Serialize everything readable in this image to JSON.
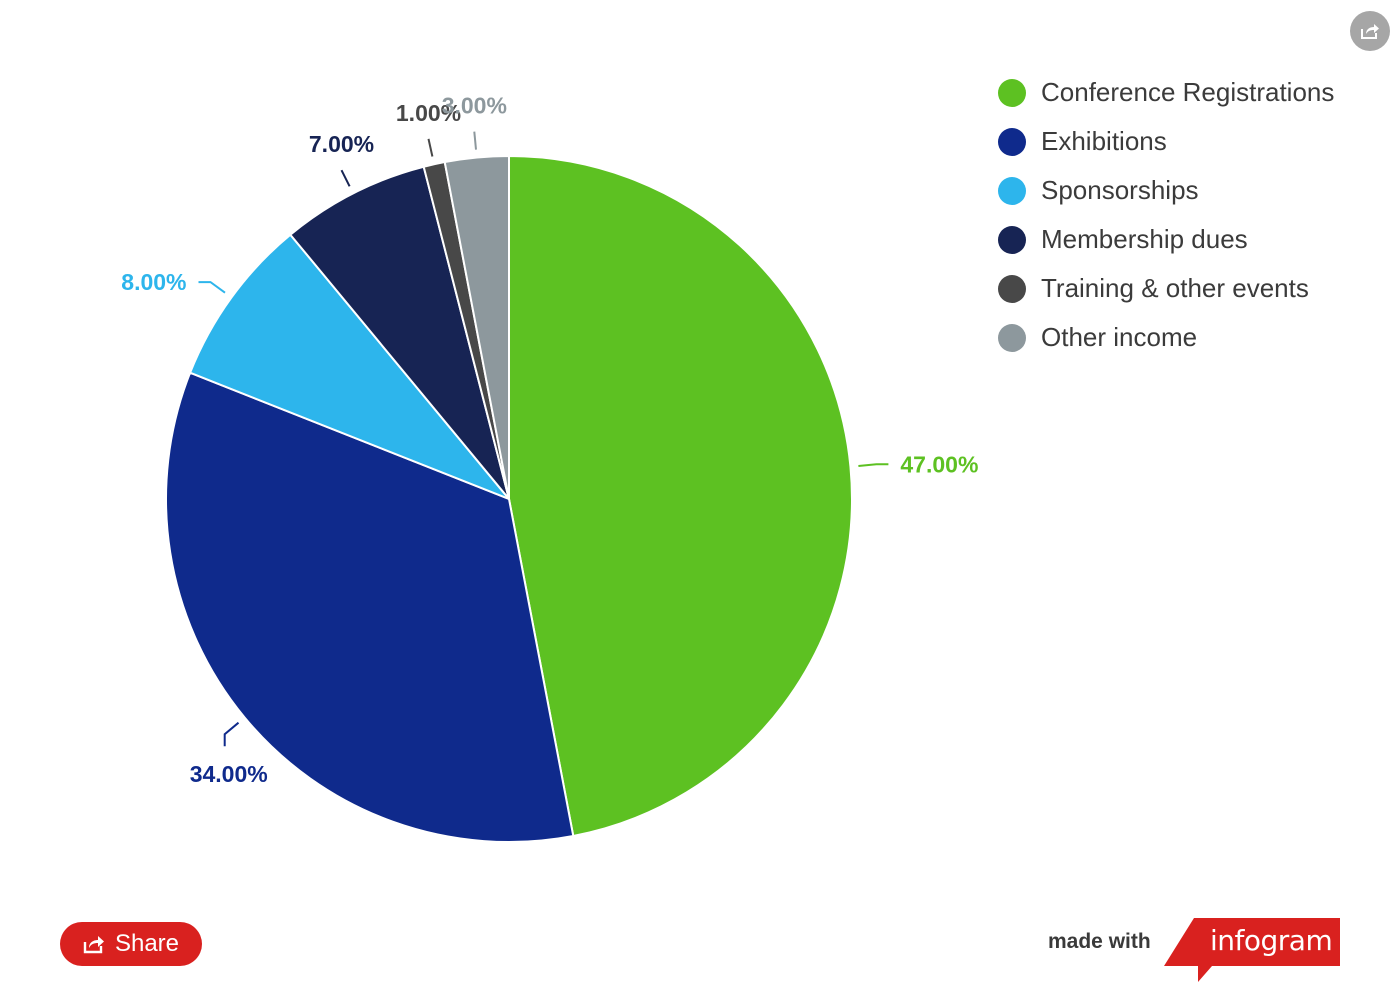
{
  "chart_data": {
    "type": "pie",
    "start_angle_deg": 0,
    "direction": "clockwise",
    "slices": [
      {
        "name": "Conference Registrations",
        "value": 47,
        "label": "47.00%",
        "color": "#5dc122",
        "label_color": "#5dc122"
      },
      {
        "name": "Exhibitions",
        "value": 34,
        "label": "34.00%",
        "color": "#0f2a8c",
        "label_color": "#0f2a8c"
      },
      {
        "name": "Sponsorships",
        "value": 8,
        "label": "8.00%",
        "color": "#2db5ec",
        "label_color": "#2db5ec"
      },
      {
        "name": "Membership dues",
        "value": 7,
        "label": "7.00%",
        "color": "#172454",
        "label_color": "#172454"
      },
      {
        "name": "Training & other events",
        "value": 1,
        "label": "1.00%",
        "color": "#484848",
        "label_color": "#484848"
      },
      {
        "name": "Other income",
        "value": 3,
        "label": "3.00%",
        "color": "#8d989d",
        "label_color": "#8d989d"
      }
    ],
    "legend_position": "top-right"
  },
  "legend": [
    {
      "label": "Conference Registrations",
      "color": "#5dc122"
    },
    {
      "label": "Exhibitions",
      "color": "#0f2a8c"
    },
    {
      "label": "Sponsorships",
      "color": "#2db5ec"
    },
    {
      "label": "Membership dues",
      "color": "#172454"
    },
    {
      "label": "Training & other events",
      "color": "#484848"
    },
    {
      "label": "Other income",
      "color": "#8d989d"
    }
  ],
  "footer": {
    "share_label": "Share",
    "made_with": "made with",
    "brand": "infogram",
    "brand_color": "#d9211f"
  },
  "icons": {
    "corner": "share-icon",
    "share_button": "share-icon"
  }
}
